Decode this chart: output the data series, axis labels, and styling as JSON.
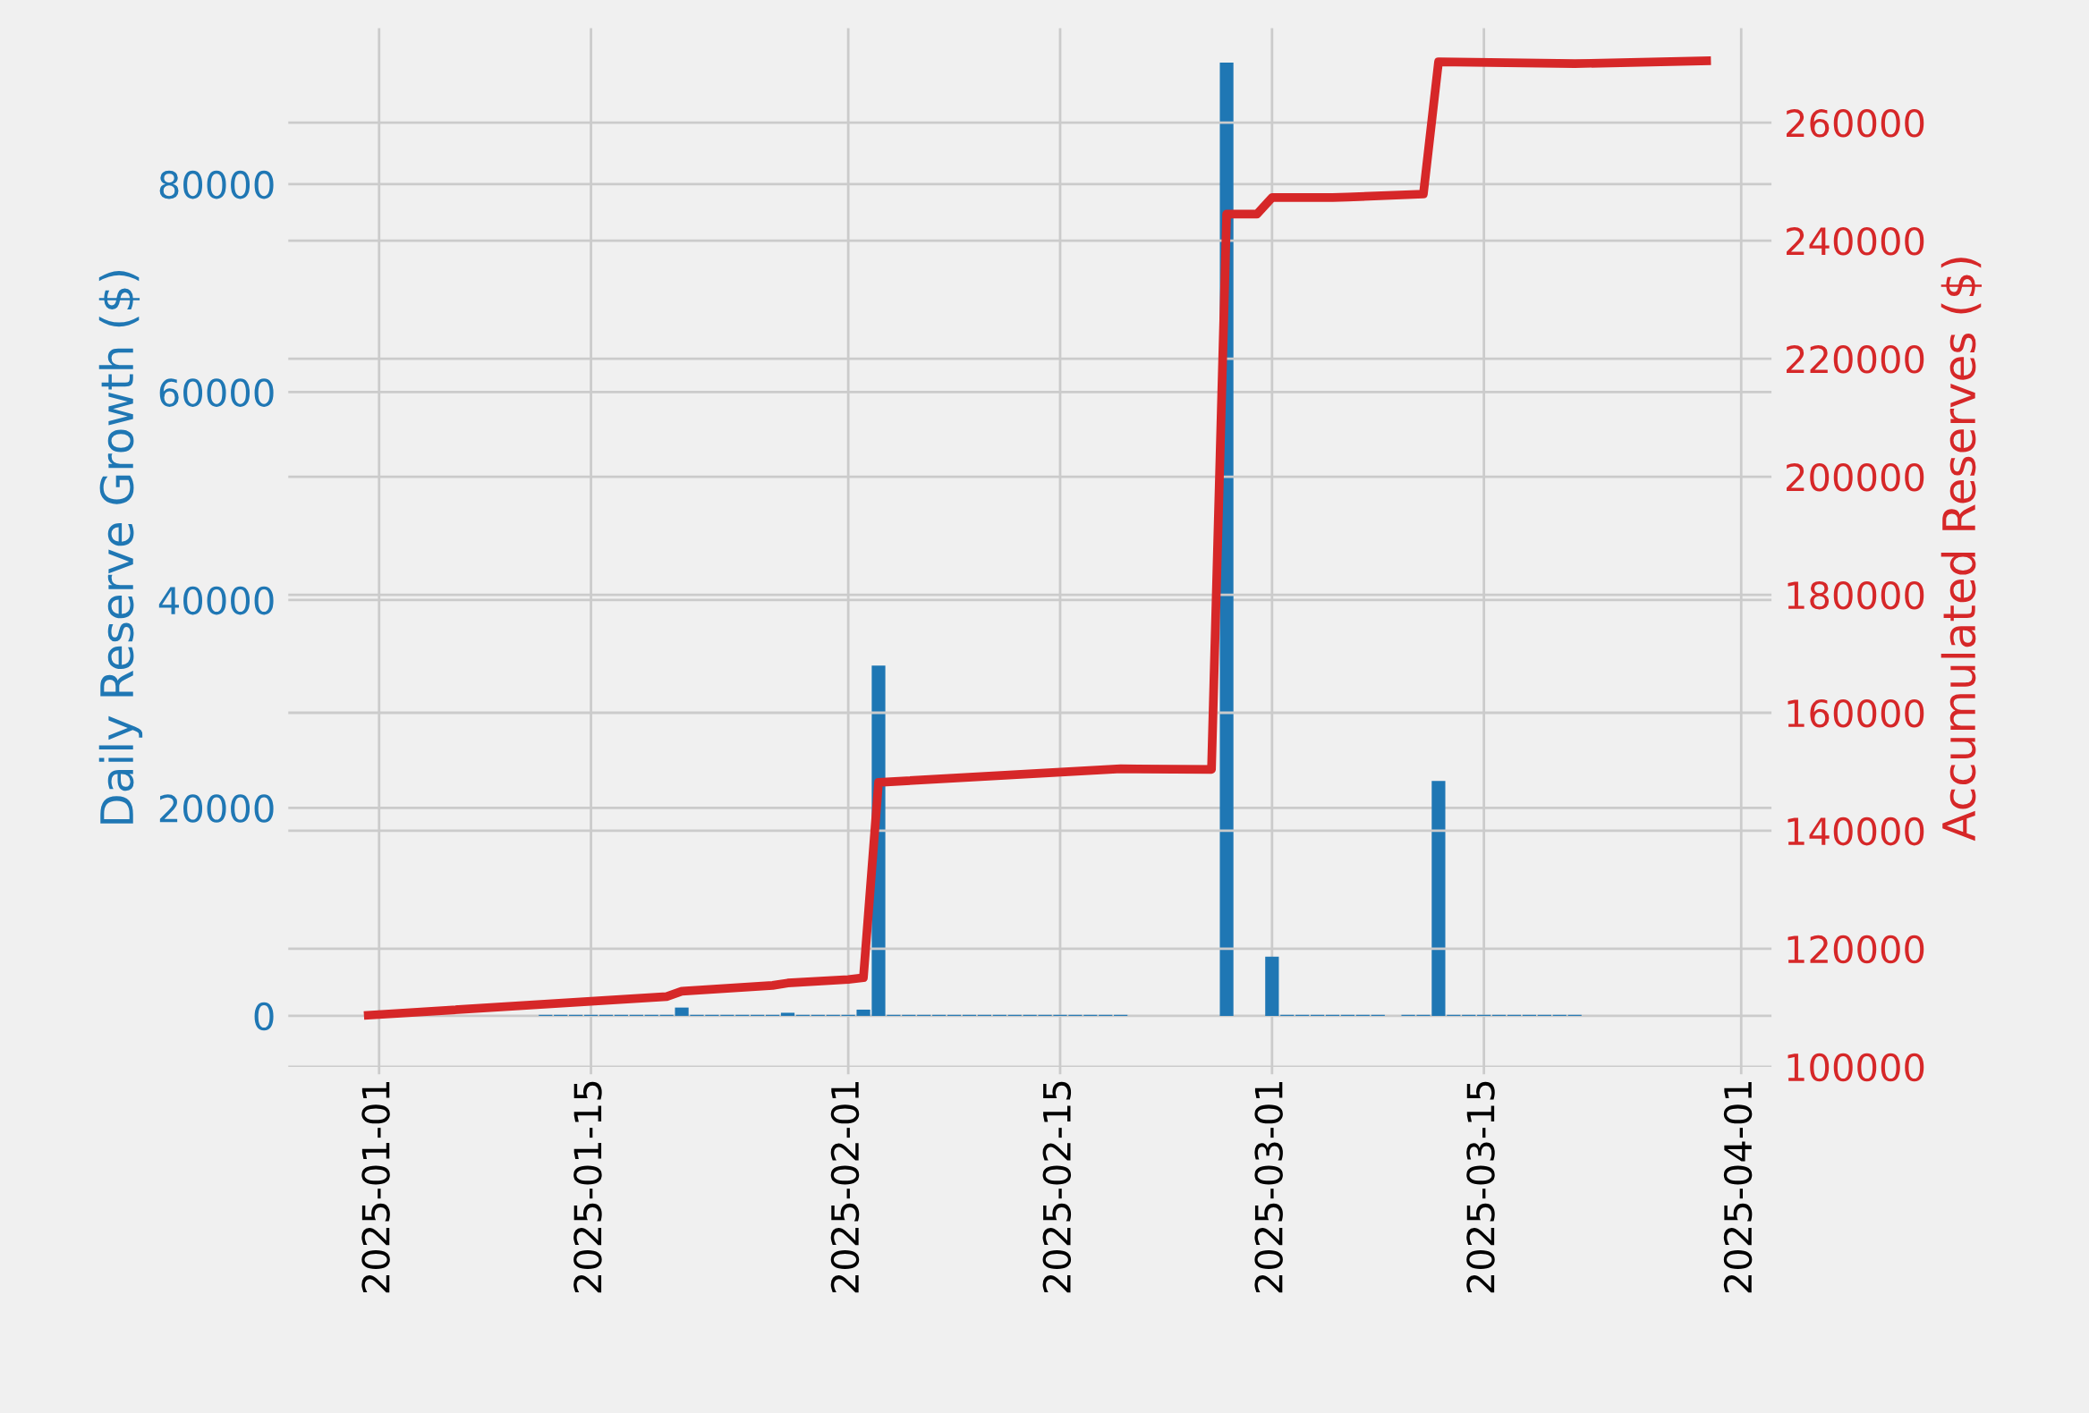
{
  "chart_data": {
    "type": "bar",
    "ylabel": "Daily Reserve Growth ($)",
    "y2label": "Accumulated Reserves ($)",
    "series": [
      {
        "axis": "y",
        "color": "#1f77b4",
        "x": [
          "2025-01-12",
          "2025-01-13",
          "2025-01-14",
          "2025-01-15",
          "2025-01-16",
          "2025-01-17",
          "2025-01-18",
          "2025-01-19",
          "2025-01-20",
          "2025-01-21",
          "2025-01-22",
          "2025-01-23",
          "2025-01-24",
          "2025-01-25",
          "2025-01-26",
          "2025-01-27",
          "2025-01-28",
          "2025-01-29",
          "2025-01-30",
          "2025-01-31",
          "2025-02-01",
          "2025-02-02",
          "2025-02-03",
          "2025-02-04",
          "2025-02-05",
          "2025-02-06",
          "2025-02-07",
          "2025-02-08",
          "2025-02-09",
          "2025-02-10",
          "2025-02-11",
          "2025-02-12",
          "2025-02-13",
          "2025-02-14",
          "2025-02-15",
          "2025-02-16",
          "2025-02-17",
          "2025-02-18",
          "2025-02-19",
          "2025-02-26",
          "2025-03-01",
          "2025-03-02",
          "2025-03-03",
          "2025-03-04",
          "2025-03-05",
          "2025-03-06",
          "2025-03-07",
          "2025-03-08",
          "2025-03-10",
          "2025-03-11",
          "2025-03-12",
          "2025-03-13",
          "2025-03-14",
          "2025-03-15",
          "2025-03-16",
          "2025-03-17",
          "2025-03-18",
          "2025-03-19",
          "2025-03-20",
          "2025-03-21"
        ],
        "values": [
          100,
          100,
          100,
          100,
          100,
          100,
          100,
          100,
          100,
          800,
          100,
          100,
          100,
          100,
          100,
          100,
          300,
          100,
          100,
          100,
          100,
          600,
          33700,
          100,
          100,
          100,
          100,
          100,
          100,
          100,
          100,
          100,
          100,
          100,
          100,
          100,
          100,
          100,
          100,
          91700,
          5700,
          100,
          100,
          100,
          100,
          100,
          100,
          100,
          100,
          100,
          22600,
          100,
          100,
          100,
          100,
          100,
          100,
          100,
          100,
          100
        ]
      },
      {
        "type": "line",
        "axis": "y2",
        "color": "#d62728",
        "x": [
          "2024-12-31",
          "2025-01-20",
          "2025-01-21",
          "2025-01-27",
          "2025-01-28",
          "2025-02-01",
          "2025-02-02",
          "2025-02-03",
          "2025-02-19",
          "2025-02-25",
          "2025-02-26",
          "2025-02-28",
          "2025-03-01",
          "2025-03-05",
          "2025-03-06",
          "2025-03-11",
          "2025-03-12",
          "2025-03-21",
          "2025-03-30"
        ],
        "values": [
          108700,
          111900,
          112800,
          113800,
          114200,
          114800,
          115100,
          148200,
          150500,
          150400,
          244500,
          244500,
          247300,
          247300,
          247400,
          247900,
          270300,
          270000,
          270500
        ]
      }
    ],
    "xlim": [
      "2024-12-26",
      "2025-04-03"
    ],
    "xticks": [
      "2025-01-01",
      "2025-01-15",
      "2025-02-01",
      "2025-02-15",
      "2025-03-01",
      "2025-03-15",
      "2025-04-01"
    ],
    "ylim": [
      -4900,
      95000
    ],
    "yticks": [
      0,
      20000,
      40000,
      60000,
      80000
    ],
    "y2lim": [
      100000,
      276000
    ],
    "y2ticks": [
      100000,
      120000,
      140000,
      160000,
      180000,
      200000,
      220000,
      240000,
      260000
    ],
    "grid": true
  }
}
